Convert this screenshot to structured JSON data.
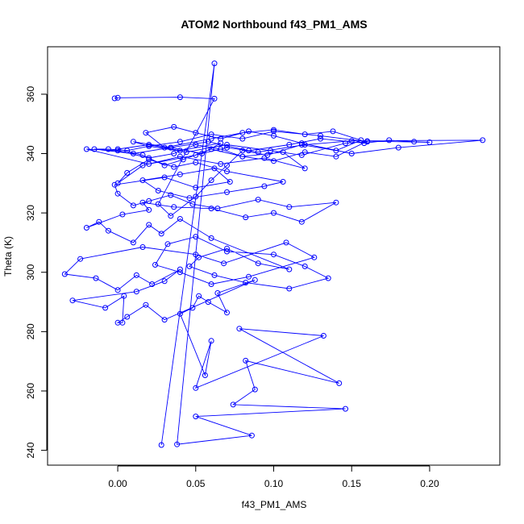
{
  "chart_data": {
    "type": "line",
    "title": "ATOM2 Northbound f43_PM1_AMS",
    "xlabel": "f43_PM1_AMS",
    "ylabel": "Theta (K)",
    "xlim": [
      -0.045,
      0.245
    ],
    "ylim": [
      235,
      376
    ],
    "x_ticks": [
      0.0,
      0.05,
      0.1,
      0.15,
      0.2
    ],
    "x_tick_labels": [
      "0.00",
      "0.05",
      "0.10",
      "0.15",
      "0.20"
    ],
    "y_ticks": [
      240,
      260,
      280,
      300,
      320,
      340,
      360
    ],
    "y_tick_labels": [
      "240",
      "260",
      "280",
      "300",
      "320",
      "340",
      "360"
    ],
    "grid": false,
    "legend": "none",
    "series_color": "#0000ff",
    "marker": "open-circle",
    "series": [
      {
        "x": [
          0.028,
          0.062,
          0.038,
          0.086,
          0.05,
          0.146,
          0.074,
          0.088,
          0.082,
          0.142,
          0.078,
          0.132,
          0.05,
          0.06,
          0.056,
          0.04,
          0.048,
          0.052,
          0.058,
          0.07,
          0.064,
          0.088,
          0.03,
          0.018,
          0.006,
          0.0,
          0.003,
          0.004,
          -0.008,
          -0.029,
          0.012,
          0.03,
          0.04,
          0.022,
          0.012,
          0.0,
          -0.014,
          -0.034,
          -0.024,
          0.016,
          0.05,
          0.068,
          0.108,
          0.126,
          0.084,
          0.06,
          0.04,
          0.024,
          0.032,
          0.05,
          0.07,
          0.1,
          0.12,
          0.135,
          0.11,
          0.082,
          0.062,
          0.046,
          0.052,
          0.07,
          0.09,
          0.11,
          0.06,
          0.04,
          0.028,
          0.02,
          0.01,
          -0.006,
          -0.012,
          -0.02,
          0.003,
          0.02,
          0.016,
          0.036,
          0.06,
          0.082,
          0.1,
          0.118,
          0.14,
          0.11,
          0.09,
          0.064,
          0.048,
          0.034,
          0.02,
          0.01,
          0.0,
          -0.002,
          0.03,
          0.05,
          0.072,
          0.062,
          0.04,
          0.016,
          0.026,
          0.046,
          0.07,
          0.094,
          0.106,
          0.07,
          0.05,
          0.036,
          0.02,
          0.006,
          0.0,
          0.016,
          0.04,
          0.066,
          0.094,
          0.12,
          0.106,
          0.08,
          0.06,
          0.042,
          0.03,
          0.016,
          0.0,
          0.02,
          0.04,
          0.066,
          0.054,
          0.034,
          0.01,
          0.02,
          0.044,
          0.07,
          0.098,
          0.118,
          0.146,
          0.16,
          0.13,
          0.1,
          0.08,
          0.06,
          0.04,
          0.02,
          0.006,
          -0.006,
          -0.015,
          0.01,
          0.034,
          0.058,
          0.084,
          0.11,
          0.13,
          0.158,
          0.174,
          0.19,
          0.2,
          0.16,
          0.14,
          0.12,
          0.1,
          0.08,
          0.066,
          0.05,
          0.036,
          0.02,
          0.0,
          -0.02,
          0.02,
          0.05,
          0.07,
          0.09,
          0.12,
          0.15,
          0.234,
          0.18,
          0.15,
          0.118,
          0.1,
          0.084,
          0.066,
          0.05,
          0.036,
          0.018,
          0.03,
          0.06,
          0.08,
          0.1,
          0.12,
          0.138,
          0.156,
          0.14,
          0.118,
          0.096,
          0.08,
          0.07,
          0.06,
          0.05,
          0.034,
          0.026,
          0.062,
          0.04,
          0.0,
          -0.002
        ],
        "y": [
          241.8,
          370.4,
          242.0,
          245.0,
          251.4,
          254.0,
          255.4,
          260.5,
          270.2,
          262.6,
          281.0,
          278.6,
          261.0,
          276.9,
          265.3,
          286.0,
          288.0,
          292.0,
          290.0,
          286.4,
          293.0,
          297.4,
          284.0,
          289.0,
          285.0,
          283.0,
          283.0,
          292.0,
          288.0,
          290.5,
          293.5,
          297.0,
          301.0,
          296.0,
          299.0,
          294.0,
          298.0,
          299.4,
          304.5,
          308.5,
          306.0,
          303.0,
          310.0,
          305.0,
          298.5,
          296.0,
          300.0,
          302.5,
          309.5,
          312.0,
          307.0,
          306.0,
          302.0,
          298.0,
          294.5,
          296.5,
          299.0,
          302.0,
          305.0,
          308.0,
          303.0,
          301.0,
          311.5,
          318.0,
          313.0,
          316.0,
          310.0,
          314.0,
          317.0,
          315.0,
          319.5,
          321.0,
          323.5,
          322.0,
          321.5,
          318.5,
          320.0,
          317.0,
          323.5,
          322.0,
          324.5,
          321.5,
          323.0,
          326.0,
          324.0,
          322.5,
          326.5,
          329.5,
          332.0,
          328.5,
          330.5,
          335.0,
          333.0,
          331.0,
          327.5,
          325.0,
          327.0,
          329.0,
          330.5,
          334.0,
          337.0,
          335.5,
          338.0,
          333.5,
          330.0,
          336.0,
          339.0,
          336.5,
          338.5,
          335.0,
          340.5,
          339.0,
          341.5,
          338.0,
          336.0,
          339.5,
          341.5,
          343.0,
          341.0,
          343.5,
          340.0,
          342.0,
          344.0,
          342.5,
          340.5,
          343.0,
          341.0,
          339.5,
          343.5,
          344.0,
          346.0,
          347.5,
          345.0,
          346.5,
          344.0,
          342.5,
          341.0,
          341.5,
          341.5,
          340.0,
          342.0,
          344.0,
          341.0,
          343.0,
          345.0,
          343.5,
          344.5,
          344.0,
          343.8,
          344.2,
          339.0,
          340.5,
          337.5,
          339.0,
          341.5,
          343.0,
          340.0,
          338.5,
          341.0,
          341.5,
          336.5,
          339.5,
          342.0,
          340.5,
          343.0,
          344.3,
          344.5,
          342.0,
          340.0,
          343.5,
          346.0,
          347.5,
          345.0,
          347.0,
          349.0,
          347.0,
          342.0,
          345.0,
          347.0,
          348.0,
          346.5,
          347.5,
          344.5,
          341.0,
          343.0,
          339.5,
          341.0,
          336.0,
          331.0,
          325.5,
          319.0,
          323.0,
          358.5,
          359.0,
          358.8,
          358.6
        ]
      }
    ]
  }
}
